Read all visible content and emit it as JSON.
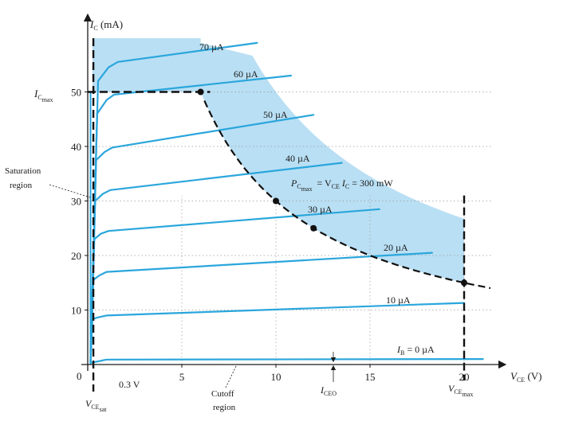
{
  "chart_data": {
    "type": "line",
    "title": "",
    "xlabel": "V_CE (V)",
    "ylabel": "I_C (mA)",
    "xlim": [
      0,
      22
    ],
    "ylim": [
      0,
      60
    ],
    "x_ticks": [
      0,
      5,
      10,
      15,
      20
    ],
    "y_ticks": [
      10,
      20,
      30,
      40,
      50
    ],
    "grid": "dotted",
    "series": [
      {
        "name": "I_B = 0 µA",
        "points": [
          [
            0.15,
            0.3
          ],
          [
            1,
            0.9
          ],
          [
            21,
            1.0
          ]
        ]
      },
      {
        "name": "10 µA",
        "points": [
          [
            0.15,
            0.5
          ],
          [
            0.25,
            8.3
          ],
          [
            0.5,
            8.6
          ],
          [
            1,
            9.0
          ],
          [
            20,
            11.3
          ]
        ]
      },
      {
        "name": "20 µA",
        "points": [
          [
            0.15,
            0.5
          ],
          [
            0.3,
            15.5
          ],
          [
            0.6,
            16.3
          ],
          [
            1,
            17.0
          ],
          [
            18.3,
            20.5
          ]
        ]
      },
      {
        "name": "30 µA",
        "points": [
          [
            0.15,
            0.5
          ],
          [
            0.35,
            23
          ],
          [
            0.7,
            24
          ],
          [
            1.1,
            24.5
          ],
          [
            15.5,
            28.5
          ]
        ]
      },
      {
        "name": "40 µA",
        "points": [
          [
            0.15,
            0.5
          ],
          [
            0.4,
            30
          ],
          [
            0.8,
            31.3
          ],
          [
            1.2,
            32
          ],
          [
            13.5,
            37
          ]
        ]
      },
      {
        "name": "50 µA",
        "points": [
          [
            0.15,
            0.5
          ],
          [
            0.45,
            37.5
          ],
          [
            0.9,
            39
          ],
          [
            1.3,
            39.8
          ],
          [
            12,
            45.8
          ]
        ]
      },
      {
        "name": "60 µA",
        "points": [
          [
            0.15,
            0.5
          ],
          [
            0.5,
            46
          ],
          [
            1.0,
            48.5
          ],
          [
            1.4,
            49.5
          ],
          [
            10.8,
            53
          ]
        ]
      },
      {
        "name": "70 µA",
        "points": [
          [
            0.15,
            0.5
          ],
          [
            0.55,
            52
          ],
          [
            1.1,
            54.5
          ],
          [
            1.6,
            55.5
          ],
          [
            9,
            59
          ]
        ]
      }
    ],
    "power_curve": {
      "equation": "P_Cmax = V_CE I_C = 300 mW",
      "power_mW": 300,
      "x_range": [
        5,
        21.5
      ]
    },
    "marked_points": [
      [
        6,
        50
      ],
      [
        10,
        30
      ],
      [
        12,
        25
      ],
      [
        20,
        15
      ]
    ],
    "limits": {
      "ic_max_mA": 50,
      "vce_max_V": 20,
      "vce_sat_V": 0.3
    }
  },
  "labels": {
    "y_axis": "I",
    "y_axis_sub": "C",
    "y_axis_unit": " (mA)",
    "x_axis": "V",
    "x_axis_sub": "CE",
    "x_axis_unit": " (V)",
    "ic_max": "I",
    "ic_max_sub1": "C",
    "ic_max_sub2": "max",
    "saturation_line1": "Saturation",
    "saturation_line2": "region",
    "vce_sat": "V",
    "vce_sat_sub1": "CE",
    "vce_sat_sub2": "sat",
    "vsat_value": "0.3 V",
    "cutoff_line1": "Cutoff",
    "cutoff_line2": "region",
    "iceo": "I",
    "iceo_sub": "CEO",
    "vce_max": "V",
    "vce_max_sub1": "CE",
    "vce_max_sub2": "max",
    "power_p": "P",
    "power_p_sub1": "C",
    "power_p_sub2": "max",
    "power_eq": "= V",
    "power_eq_sub": "CE",
    "power_eq_rest": " I",
    "power_eq_sub2": "C",
    "power_eq_tail": " = 300 mW",
    "ib_zero": "I",
    "ib_zero_sub": "B",
    "ib_zero_val": " = 0 µA",
    "curve_labels": [
      "10 µA",
      "20 µA",
      "30 µA",
      "40 µA",
      "50 µA",
      "60 µA",
      "70 µA"
    ],
    "origin": "0"
  },
  "colors": {
    "curve": "#2aa6dc",
    "shade": "#b9dff4",
    "axis": "#1a1a1a",
    "dashed": "#111111",
    "grid": "#9a9a9a"
  }
}
